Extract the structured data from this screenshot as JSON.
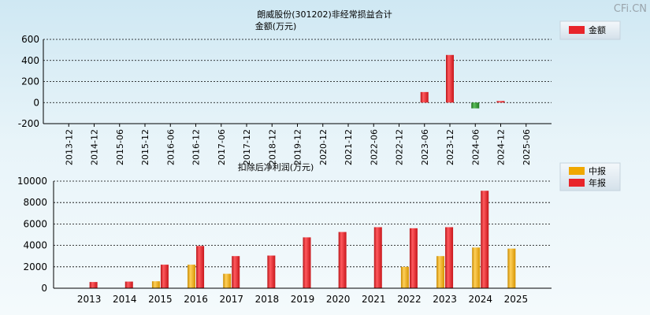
{
  "watermark": "CFi.CN",
  "colors": {
    "positive": "#e8242a",
    "negative": "#2f8f2f",
    "annual": "#e8242a",
    "interim": "#f0a800",
    "grid": "#000000"
  },
  "chart_data": [
    {
      "type": "bar",
      "title": "朗威股份(301202)非经常损益合计",
      "subtitle": "金额(万元)",
      "legend": [
        "金额"
      ],
      "legend_position": "top-right",
      "categories": [
        "2013-12",
        "2014-12",
        "2015-06",
        "2015-12",
        "2016-06",
        "2016-12",
        "2017-06",
        "2017-12",
        "2018-12",
        "2019-12",
        "2020-12",
        "2021-12",
        "2022-06",
        "2022-12",
        "2023-06",
        "2023-12",
        "2024-06",
        "2024-12",
        "2025-06"
      ],
      "series": [
        {
          "name": "金额",
          "values": [
            null,
            null,
            null,
            null,
            null,
            null,
            null,
            null,
            null,
            null,
            null,
            null,
            null,
            null,
            100,
            452,
            -55,
            15,
            null
          ]
        }
      ],
      "ylim": [
        -200,
        600
      ],
      "yticks": [
        600,
        400,
        200,
        0,
        -200
      ],
      "grid": true
    },
    {
      "type": "bar",
      "title": "扣除后净利润(万元)",
      "legend": [
        "中报",
        "年报"
      ],
      "legend_position": "top-right",
      "categories": [
        "2013",
        "2014",
        "2015",
        "2016",
        "2017",
        "2018",
        "2019",
        "2020",
        "2021",
        "2022",
        "2023",
        "2024",
        "2025"
      ],
      "series": [
        {
          "name": "中报",
          "values": [
            null,
            null,
            650,
            2200,
            1350,
            null,
            null,
            null,
            null,
            2000,
            3000,
            3800,
            3700
          ]
        },
        {
          "name": "年报",
          "values": [
            580,
            620,
            2200,
            3950,
            3000,
            3050,
            4750,
            5250,
            5700,
            5600,
            5700,
            9100,
            null
          ]
        }
      ],
      "ylim": [
        0,
        10000
      ],
      "yticks": [
        10000,
        8000,
        6000,
        4000,
        2000,
        0
      ],
      "grid": true
    }
  ]
}
